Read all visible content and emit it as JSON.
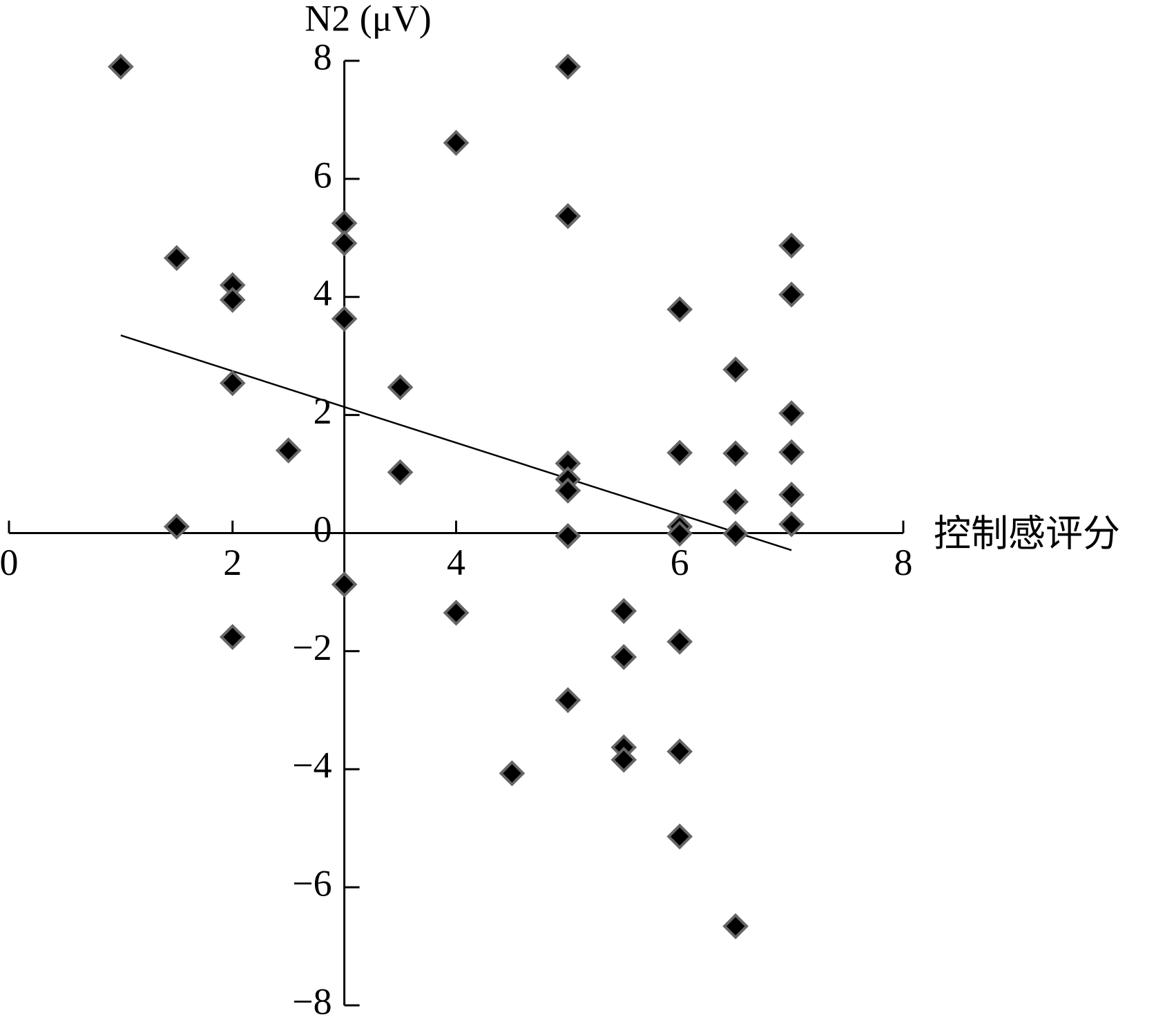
{
  "chart_data": {
    "type": "scatter",
    "x_label": "控制感评分",
    "y_label": "N2 (μV)",
    "x": [
      1,
      1.5,
      1.5,
      2,
      2,
      2,
      2,
      2.5,
      3,
      3,
      3,
      3,
      3.5,
      3.5,
      4,
      4,
      4.5,
      5,
      5,
      5,
      5,
      5,
      5,
      5,
      5.5,
      5.5,
      5.5,
      5.5,
      6,
      6,
      6,
      6,
      6,
      6,
      6,
      6.5,
      6.5,
      6.5,
      6.5,
      6.5,
      7,
      7,
      7,
      7,
      7,
      7
    ],
    "values": [
      7.9,
      4.66,
      0.11,
      4.2,
      3.95,
      2.54,
      -1.76,
      1.4,
      5.25,
      4.91,
      3.63,
      -0.87,
      2.47,
      1.03,
      6.61,
      -1.35,
      -4.07,
      7.9,
      5.37,
      1.18,
      0.91,
      0.72,
      -0.05,
      -2.83,
      -1.32,
      -2.1,
      -3.63,
      -3.84,
      3.79,
      1.36,
      0.11,
      -0.01,
      -1.84,
      -3.7,
      -5.14,
      2.77,
      1.35,
      0.53,
      -0.01,
      -6.66,
      4.87,
      4.04,
      2.03,
      1.37,
      0.65,
      0.15
    ],
    "color": "#000000",
    "marker_edge_color": "#666666",
    "trend_line": {
      "x": [
        1,
        7
      ],
      "values": [
        3.35,
        -0.29
      ],
      "color": "#000000"
    },
    "xlim": [
      0,
      8
    ],
    "xticks": [
      0,
      2,
      4,
      6,
      8
    ],
    "ylim": [
      -8,
      8
    ],
    "yticks": [
      {
        "value": -8,
        "label": "−8"
      },
      {
        "value": -6,
        "label": "−6"
      },
      {
        "value": -4,
        "label": "−4"
      },
      {
        "value": -2,
        "label": "−2"
      },
      0,
      2,
      4,
      6,
      8
    ],
    "y_axis_at_x": 3,
    "x_axis_at_y": 0,
    "grid": false
  }
}
